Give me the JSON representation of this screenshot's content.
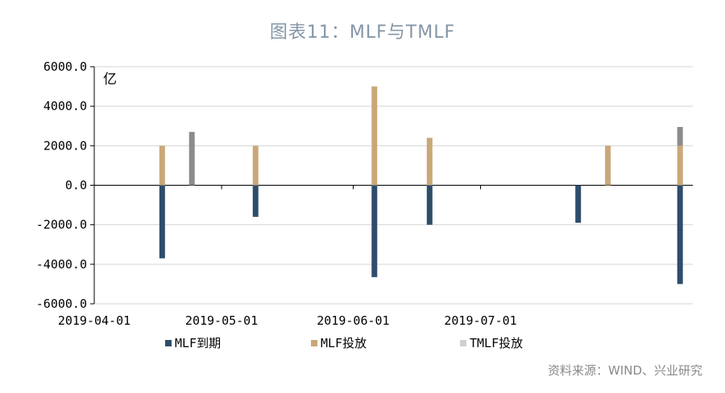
{
  "page": {
    "title": "图表11：MLF与TMLF",
    "source": "资料来源：WIND、兴业研究"
  },
  "chart_data": {
    "type": "bar",
    "title": "图表11：MLF与TMLF",
    "unit": "亿",
    "xlabel": "",
    "ylabel": "",
    "ylim": [
      -6000,
      6000
    ],
    "yticks": [
      6000,
      4000,
      2000,
      0,
      -2000,
      -4000,
      -6000
    ],
    "ytick_labels": [
      "6000.0",
      "4000.0",
      "2000.0",
      "0.0",
      "-2000.0",
      "-4000.0",
      "-6000.0"
    ],
    "x_range": [
      "2019-04-01",
      "2019-08-20"
    ],
    "xticks": [
      "2019-04-01",
      "2019-05-01",
      "2019-06-01",
      "2019-07-01"
    ],
    "grid": true,
    "legend_position": "bottom",
    "series": [
      {
        "name": "MLF到期",
        "color": "#2e4d6b",
        "points": [
          {
            "date": "2019-04-17",
            "value": -3700
          },
          {
            "date": "2019-05-09",
            "value": -1600
          },
          {
            "date": "2019-06-06",
            "value": -4650
          },
          {
            "date": "2019-06-19",
            "value": -2000
          },
          {
            "date": "2019-07-24",
            "value": -1900
          },
          {
            "date": "2019-08-17",
            "value": -5000
          }
        ]
      },
      {
        "name": "MLF投放",
        "color": "#c9a878",
        "points": [
          {
            "date": "2019-04-17",
            "value": 2000
          },
          {
            "date": "2019-05-09",
            "value": 2000
          },
          {
            "date": "2019-06-06",
            "value": 5000
          },
          {
            "date": "2019-06-19",
            "value": 2400
          },
          {
            "date": "2019-07-31",
            "value": 2000
          },
          {
            "date": "2019-08-17",
            "value": 2000
          }
        ]
      },
      {
        "name": "TMLF投放",
        "color": "#8c8c8c",
        "points": [
          {
            "date": "2019-04-24",
            "value": 2700
          },
          {
            "date": "2019-08-17",
            "value": 2950,
            "base": 2000
          }
        ]
      }
    ]
  }
}
